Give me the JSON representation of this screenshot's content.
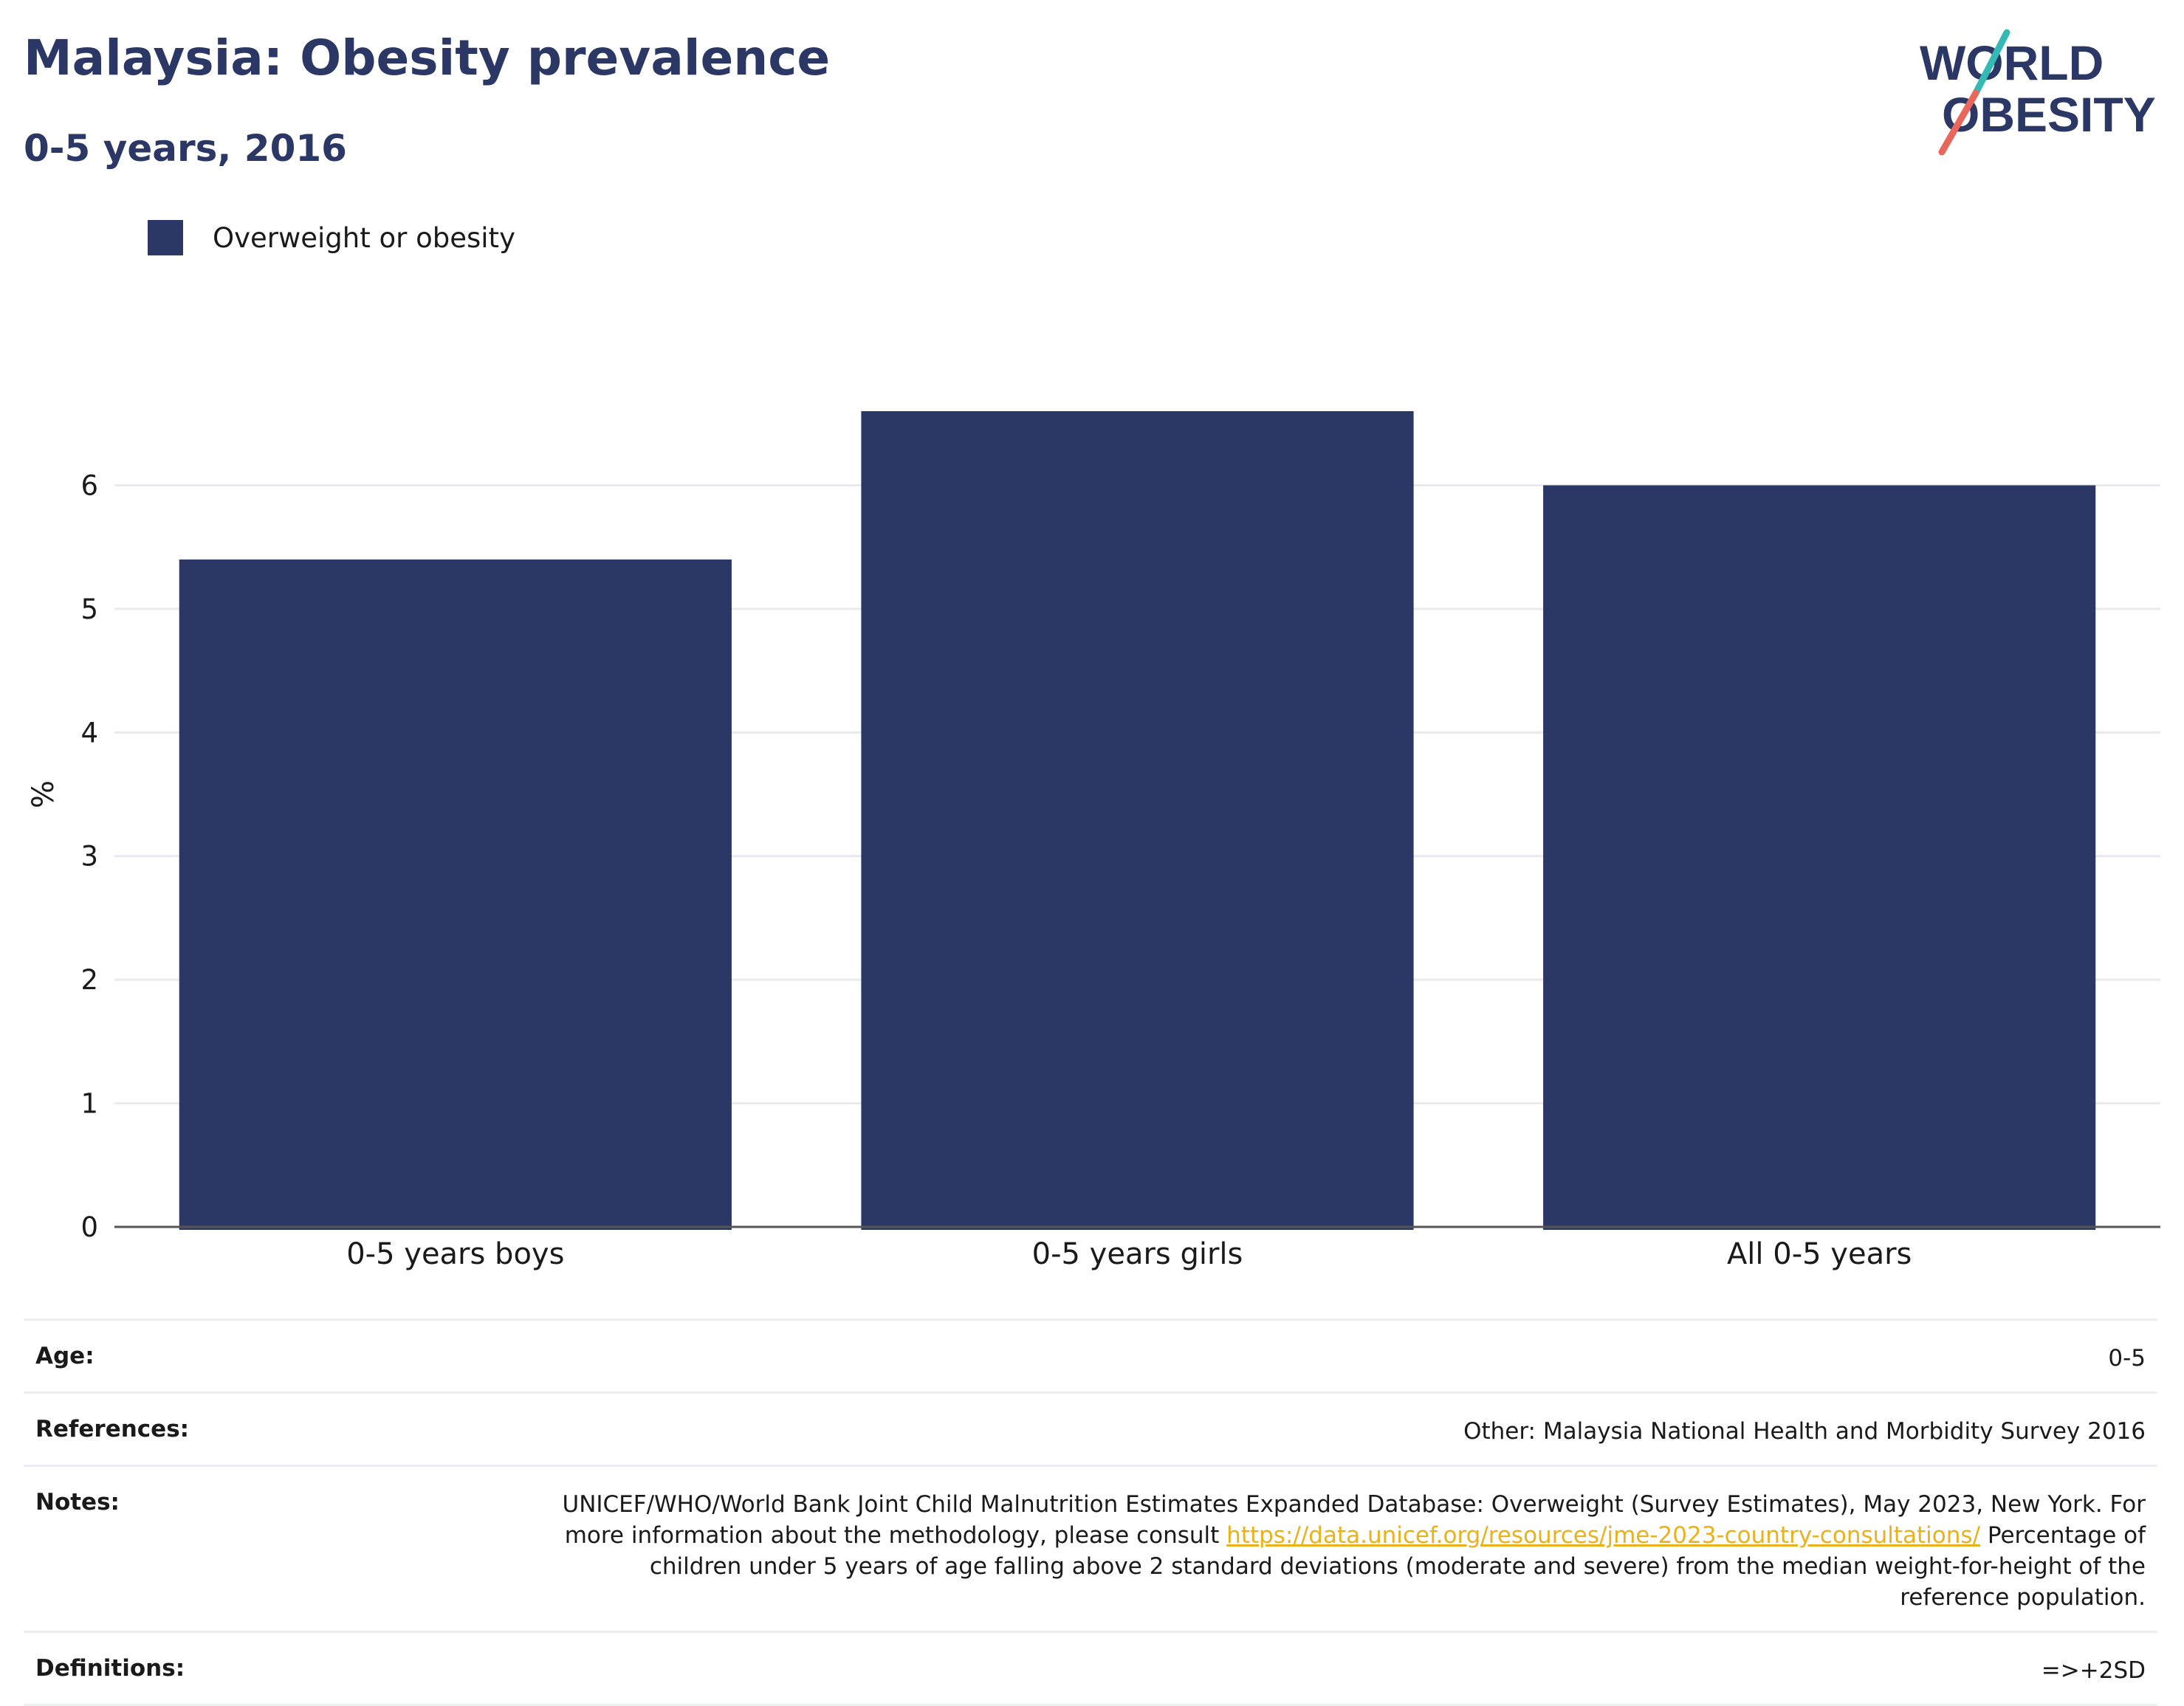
{
  "header": {
    "title": "Malaysia: Obesity prevalence",
    "subtitle": "0-5 years, 2016"
  },
  "logo": {
    "line1": "WORLD",
    "line2": "OBESITY",
    "text_color": "#2b3764",
    "slash_top_color": "#35b9b5",
    "slash_bottom_color": "#e8675a"
  },
  "legend": {
    "label": "Overweight or obesity",
    "color": "#2b3764"
  },
  "chart_data": {
    "type": "bar",
    "categories": [
      "0-5 years boys",
      "0-5 years girls",
      "All 0-5 years"
    ],
    "series": [
      {
        "name": "Overweight or obesity",
        "values": [
          5.4,
          6.6,
          6.0
        ],
        "color": "#2b3764"
      }
    ],
    "ylabel": "%",
    "xlabel": "",
    "ylim": [
      0,
      7
    ],
    "yticks": [
      0,
      1,
      2,
      3,
      4,
      5,
      6
    ],
    "grid": true,
    "legend_position": "top-left"
  },
  "metadata": [
    {
      "label": "Age:",
      "value": "0-5"
    },
    {
      "label": "References:",
      "value": "Other: Malaysia National Health and Morbidity Survey 2016"
    },
    {
      "label": "Notes:",
      "value_before": "UNICEF/WHO/World Bank Joint Child Malnutrition Estimates Expanded Database: Overweight (Survey Estimates), May 2023, New York. For more information about the methodology, please consult ",
      "link": "https://data.unicef.org/resources/jme-2023-country-consultations/",
      "value_after": " Percentage of children under 5 years of age falling above 2 standard deviations (moderate and severe) from the median weight-for-height of the reference population."
    },
    {
      "label": "Definitions:",
      "value": "=>+2SD"
    }
  ]
}
